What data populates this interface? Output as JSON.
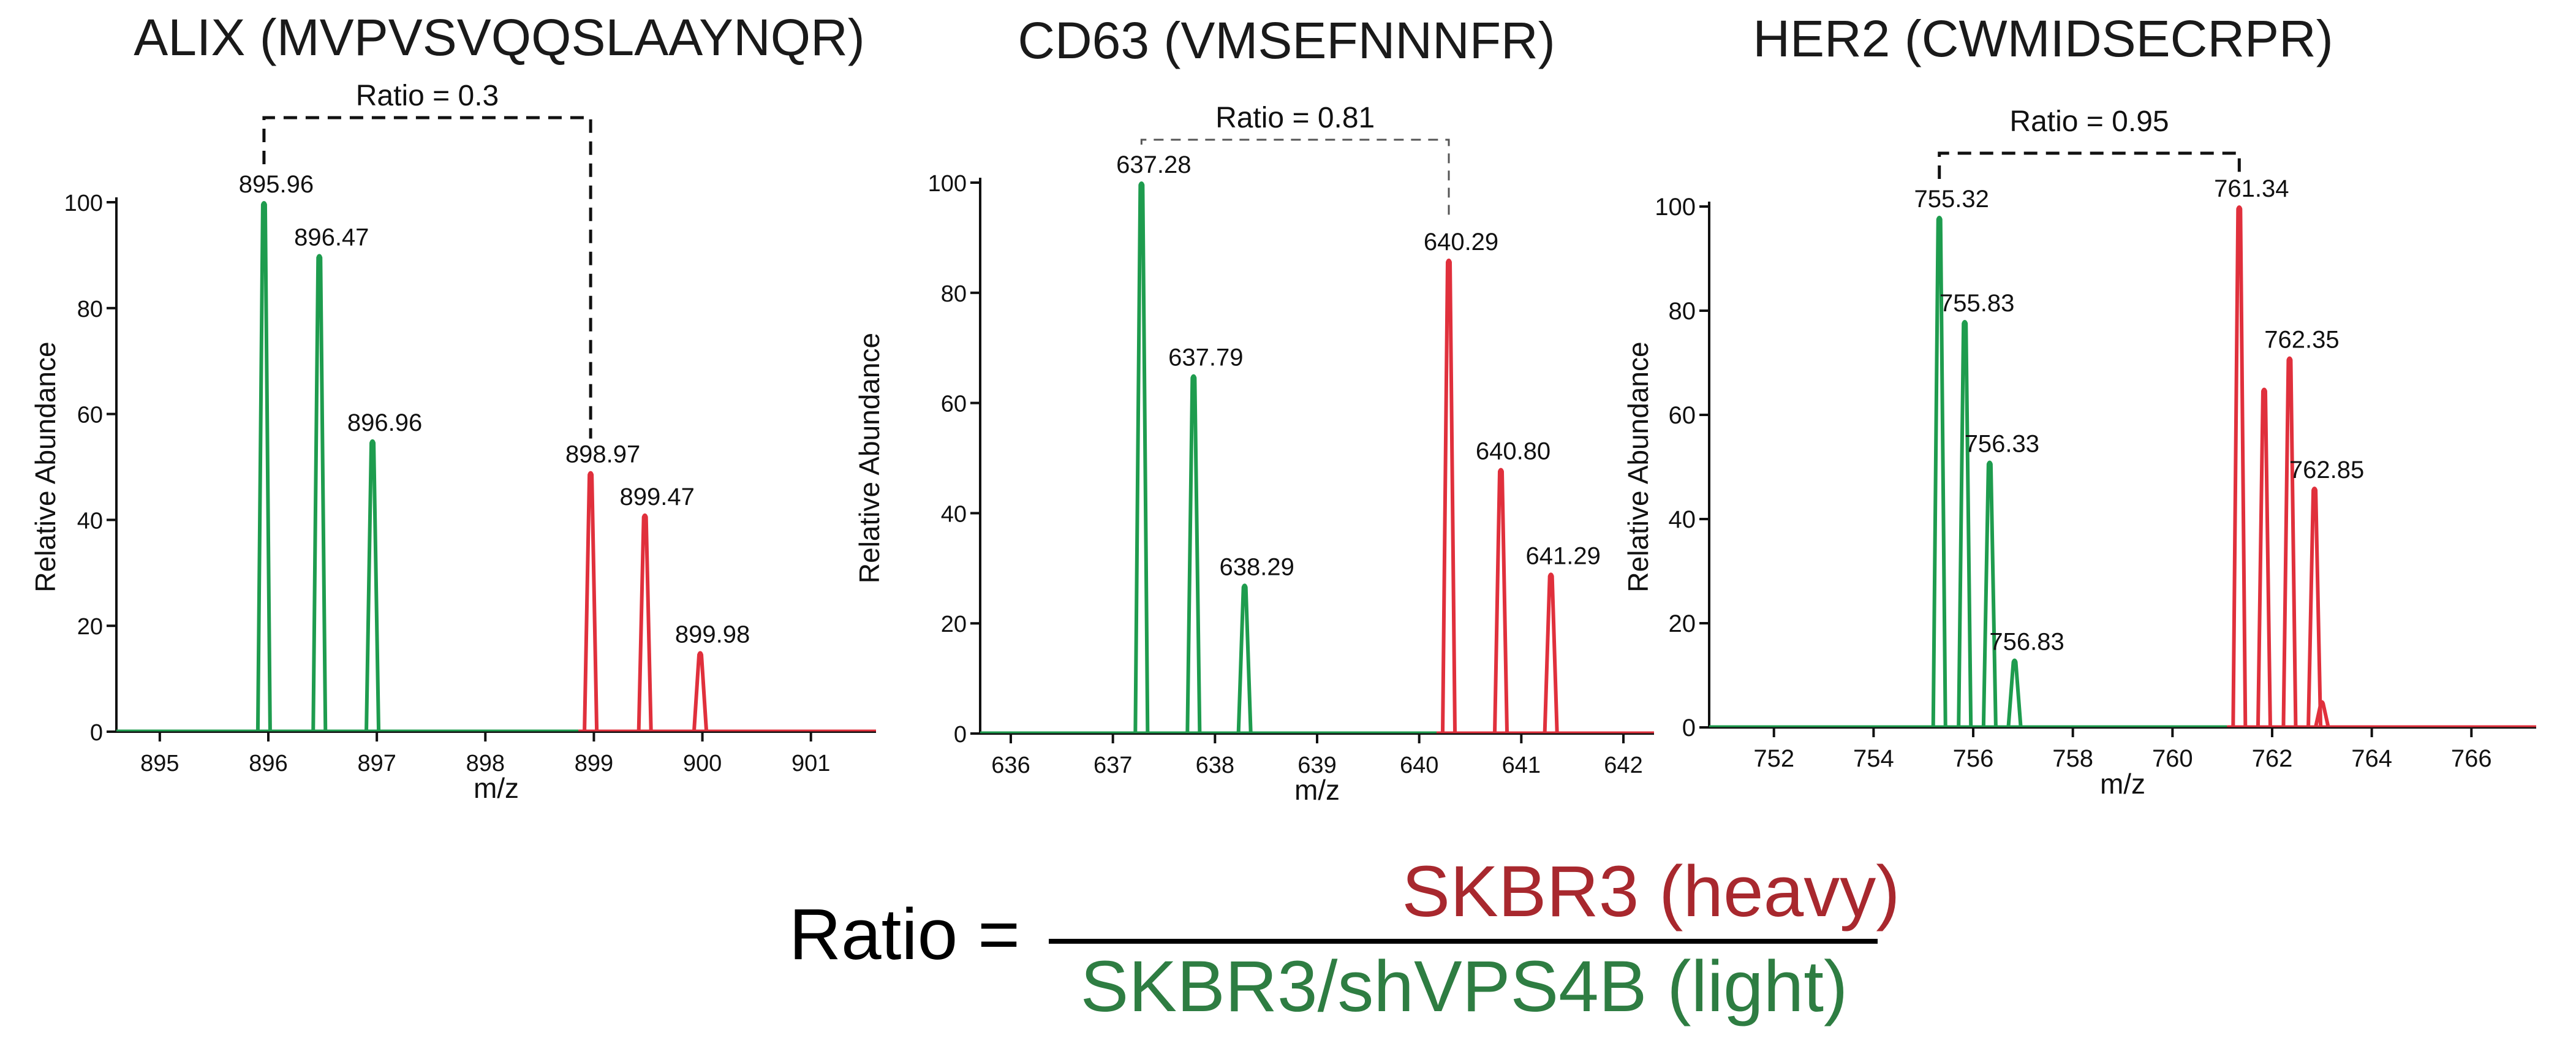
{
  "colors": {
    "light": "#1e9c4e",
    "heavy": "#e0303c",
    "numerator": "#a8282e",
    "denominator": "#2e7d42",
    "axis": "#111111"
  },
  "formula": {
    "lhs": "Ratio =",
    "numerator": "SKBR3 (heavy)",
    "denominator": "SKBR3/shVPS4B (light)"
  },
  "chart_data": [
    {
      "type": "line",
      "title": "ALIX (MVPVSVQQSLAAYNQR)",
      "xlabel": "m/z",
      "ylabel": "Relative Abundance",
      "xlim": [
        894.6,
        901.6
      ],
      "ylim": [
        0,
        100
      ],
      "xticks": [
        895,
        896,
        897,
        898,
        899,
        900,
        901
      ],
      "yticks": [
        0,
        20,
        40,
        60,
        80,
        100
      ],
      "ratio_label": "Ratio = 0.3",
      "ratio_bracket": [
        "895.96",
        "898.97"
      ],
      "bracket_style": "dashed-bold",
      "peaks": [
        {
          "mz": 895.96,
          "label": "895.96",
          "intensity": 100,
          "series": "light"
        },
        {
          "mz": 896.47,
          "label": "896.47",
          "intensity": 90,
          "series": "light"
        },
        {
          "mz": 896.96,
          "label": "896.96",
          "intensity": 55,
          "series": "light"
        },
        {
          "mz": 898.97,
          "label": "898.97",
          "intensity": 49,
          "series": "heavy"
        },
        {
          "mz": 899.47,
          "label": "899.47",
          "intensity": 41,
          "series": "heavy"
        },
        {
          "mz": 899.98,
          "label": "899.98",
          "intensity": 15,
          "series": "heavy"
        }
      ]
    },
    {
      "type": "line",
      "title": "CD63 (VMSEFNNNFR)",
      "xlabel": "m/z",
      "ylabel": "Relative Abundance",
      "xlim": [
        635.7,
        642.3
      ],
      "ylim": [
        0,
        100
      ],
      "xticks": [
        636,
        637,
        638,
        639,
        640,
        641,
        642
      ],
      "yticks": [
        0,
        20,
        40,
        60,
        80,
        100
      ],
      "ratio_label": "Ratio = 0.81",
      "ratio_bracket": [
        "637.28",
        "640.29"
      ],
      "bracket_style": "dashed-thin",
      "peaks": [
        {
          "mz": 637.28,
          "label": "637.28",
          "intensity": 100,
          "series": "light"
        },
        {
          "mz": 637.79,
          "label": "637.79",
          "intensity": 65,
          "series": "light"
        },
        {
          "mz": 638.29,
          "label": "638.29",
          "intensity": 27,
          "series": "light"
        },
        {
          "mz": 640.29,
          "label": "640.29",
          "intensity": 86,
          "series": "heavy"
        },
        {
          "mz": 640.8,
          "label": "640.80",
          "intensity": 48,
          "series": "heavy"
        },
        {
          "mz": 641.29,
          "label": "641.29",
          "intensity": 29,
          "series": "heavy"
        }
      ]
    },
    {
      "type": "line",
      "title": "HER2 (CWMIDSECRPR)",
      "xlabel": "m/z",
      "ylabel": "Relative Abundance",
      "xlim": [
        750.7,
        767.3
      ],
      "ylim": [
        0,
        100
      ],
      "xticks": [
        752,
        754,
        756,
        758,
        760,
        762,
        764,
        766
      ],
      "yticks": [
        0,
        20,
        40,
        60,
        80,
        100
      ],
      "ratio_label": "Ratio = 0.95",
      "ratio_bracket": [
        "755.32",
        "761.34"
      ],
      "bracket_style": "dashed-bold",
      "peaks": [
        {
          "mz": 755.32,
          "label": "755.32",
          "intensity": 98,
          "series": "light"
        },
        {
          "mz": 755.83,
          "label": "755.83",
          "intensity": 78,
          "series": "light"
        },
        {
          "mz": 756.33,
          "label": "756.33",
          "intensity": 51,
          "series": "light"
        },
        {
          "mz": 756.83,
          "label": "756.83",
          "intensity": 13,
          "series": "light"
        },
        {
          "mz": 761.34,
          "label": "761.34",
          "intensity": 100,
          "series": "heavy"
        },
        {
          "mz": 761.84,
          "label": "",
          "intensity": 65,
          "series": "heavy"
        },
        {
          "mz": 762.35,
          "label": "762.35",
          "intensity": 71,
          "series": "heavy"
        },
        {
          "mz": 762.85,
          "label": "762.85",
          "intensity": 46,
          "series": "heavy"
        },
        {
          "mz": 763.0,
          "label": "",
          "intensity": 5,
          "series": "heavy"
        }
      ]
    }
  ]
}
